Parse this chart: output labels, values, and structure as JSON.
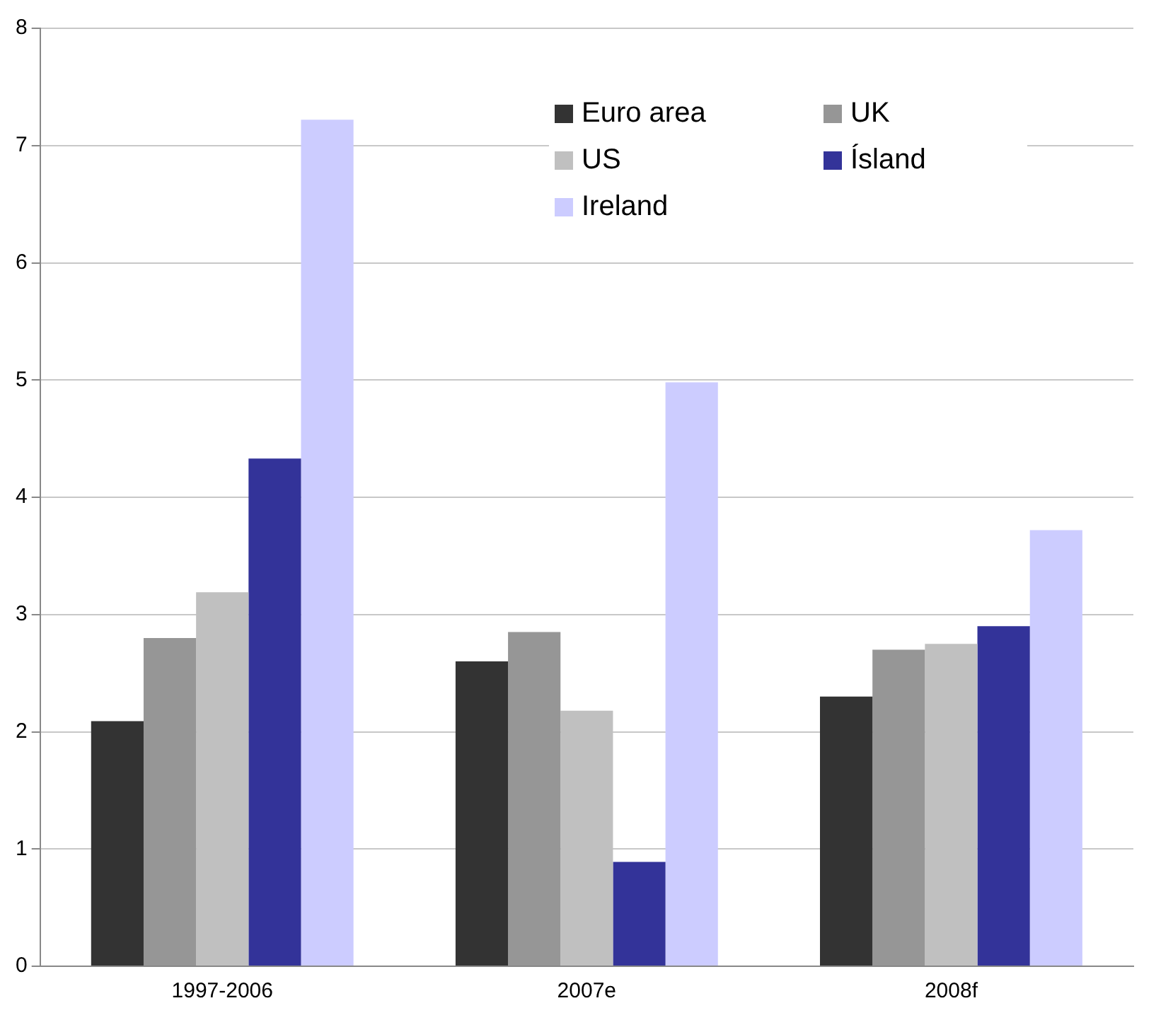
{
  "chart_data": {
    "type": "bar",
    "categories": [
      "1997-2006",
      "2007e",
      "2008f"
    ],
    "series": [
      {
        "name": "Euro area",
        "color": "#333333",
        "values": [
          2.09,
          2.6,
          2.3
        ]
      },
      {
        "name": "UK",
        "color": "#969696",
        "values": [
          2.8,
          2.85,
          2.7
        ]
      },
      {
        "name": "US",
        "color": "#c0c0c0",
        "values": [
          3.19,
          2.18,
          2.75
        ]
      },
      {
        "name": "Ísland",
        "color": "#333399",
        "values": [
          4.33,
          0.89,
          2.9
        ]
      },
      {
        "name": "Ireland",
        "color": "#ccccff",
        "values": [
          7.22,
          4.98,
          3.72
        ]
      }
    ],
    "ylim": [
      0,
      8
    ],
    "yticks": [
      0,
      1,
      2,
      3,
      4,
      5,
      6,
      7,
      8
    ],
    "grid": "y",
    "legend": "top"
  }
}
